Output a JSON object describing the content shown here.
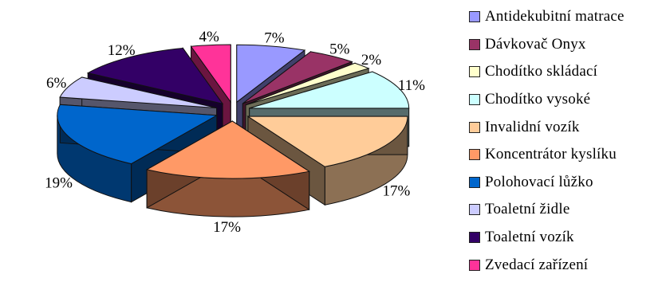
{
  "chart_data": {
    "type": "pie",
    "title": "",
    "exploded": true,
    "three_d": true,
    "legend_position": "right",
    "categories": [
      "Antidekubitní matrace",
      "Dávkovač Onyx",
      "Chodítko skládací",
      "Chodítko vysoké",
      "Invalidní vozík",
      "Koncentrátor kyslíku",
      "Polohovací lůžko",
      "Toaletní židle",
      "Toaletní vozík",
      "Zvedací zařízení"
    ],
    "values": [
      7,
      5,
      2,
      11,
      17,
      17,
      19,
      6,
      12,
      4
    ],
    "labels": [
      "7%",
      "5%",
      "2%",
      "11%",
      "17%",
      "17%",
      "19%",
      "6%",
      "12%",
      "4%"
    ],
    "colors": [
      "#9999ff",
      "#993366",
      "#ffffcc",
      "#ccffff",
      "#ffcc99",
      "#ff9966",
      "#0066cc",
      "#ccccff",
      "#330066",
      "#ff3399"
    ]
  }
}
